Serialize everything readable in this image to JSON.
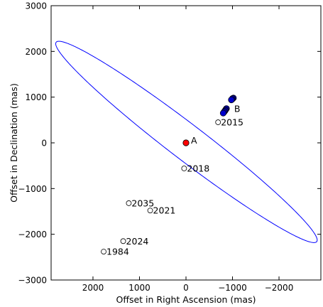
{
  "chart_data": {
    "type": "scatter",
    "title": "",
    "xlabel": "Offset in Right Ascension (mas)",
    "ylabel": "Offset in Declination (mas)",
    "xlim": [
      2900,
      -2900
    ],
    "ylim": [
      -3000,
      3000
    ],
    "x_inverted": true,
    "xticks": [
      2000,
      1000,
      0,
      -1000,
      -2000
    ],
    "xtick_labels": [
      "2000",
      "1000",
      "0",
      "−1000",
      "−2000"
    ],
    "yticks": [
      3000,
      2000,
      1000,
      0,
      -1000,
      -2000,
      -3000
    ],
    "ytick_labels": [
      "3000",
      "2000",
      "1000",
      "0",
      "−1000",
      "−2000",
      "−3000"
    ],
    "grid": false,
    "legend": "none",
    "orbit_ellipse": {
      "center": [
        -10,
        20
      ],
      "semi_major": 3550,
      "semi_minor": 385,
      "angle_deg": 37.9,
      "color": "#0000ff"
    },
    "primary": {
      "name": "A",
      "x": 0,
      "y": 0,
      "color": "#ff0000"
    },
    "observed": {
      "label": "B",
      "color": "#0000cc",
      "points": [
        [
          -1020,
          980
        ],
        [
          -1000,
          970
        ],
        [
          -990,
          950
        ],
        [
          -975,
          940
        ],
        [
          -870,
          750
        ],
        [
          -855,
          730
        ],
        [
          -845,
          710
        ],
        [
          -830,
          690
        ],
        [
          -815,
          670
        ],
        [
          -800,
          650
        ]
      ]
    },
    "predicted": {
      "color": "#ffffff",
      "points": [
        {
          "label": "2015",
          "x": -690,
          "y": 450
        },
        {
          "label": "2018",
          "x": 40,
          "y": -560
        },
        {
          "label": "2021",
          "x": 770,
          "y": -1480
        },
        {
          "label": "2024",
          "x": 1350,
          "y": -2150
        },
        {
          "label": "1984",
          "x": 1770,
          "y": -2380
        },
        {
          "label": "2035",
          "x": 1230,
          "y": -1320
        }
      ]
    }
  }
}
